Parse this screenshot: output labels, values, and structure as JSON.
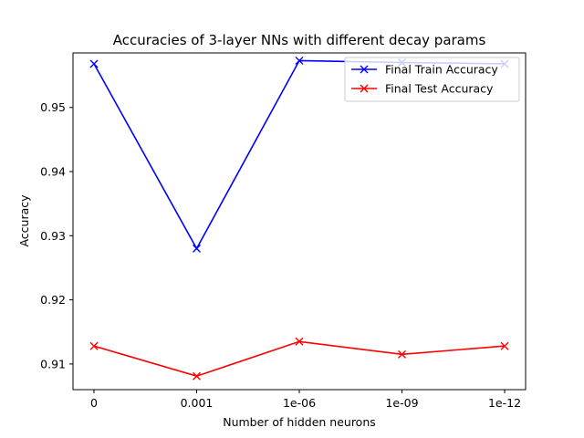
{
  "chart_data": {
    "type": "line",
    "title": "Accuracies of 3-layer NNs with different decay params",
    "xlabel": "Number of hidden neurons",
    "ylabel": "Accuracy",
    "categories": [
      "0",
      "0.001",
      "1e-06",
      "1e-09",
      "1e-12"
    ],
    "ylim": [
      0.906,
      0.9585
    ],
    "yticks": [
      0.91,
      0.92,
      0.93,
      0.94,
      0.95
    ],
    "yticklabels": [
      "0.91",
      "0.92",
      "0.93",
      "0.94",
      "0.95"
    ],
    "grid": false,
    "legend_position": "top-right",
    "series": [
      {
        "name": "Final Train Accuracy",
        "color": "#0000ff",
        "marker": "x",
        "values": [
          0.9568,
          0.928,
          0.9573,
          0.957,
          0.9568
        ]
      },
      {
        "name": "Final Test Accuracy",
        "color": "#ff0000",
        "marker": "x",
        "values": [
          0.9128,
          0.9081,
          0.9135,
          0.9115,
          0.9128
        ]
      }
    ]
  }
}
